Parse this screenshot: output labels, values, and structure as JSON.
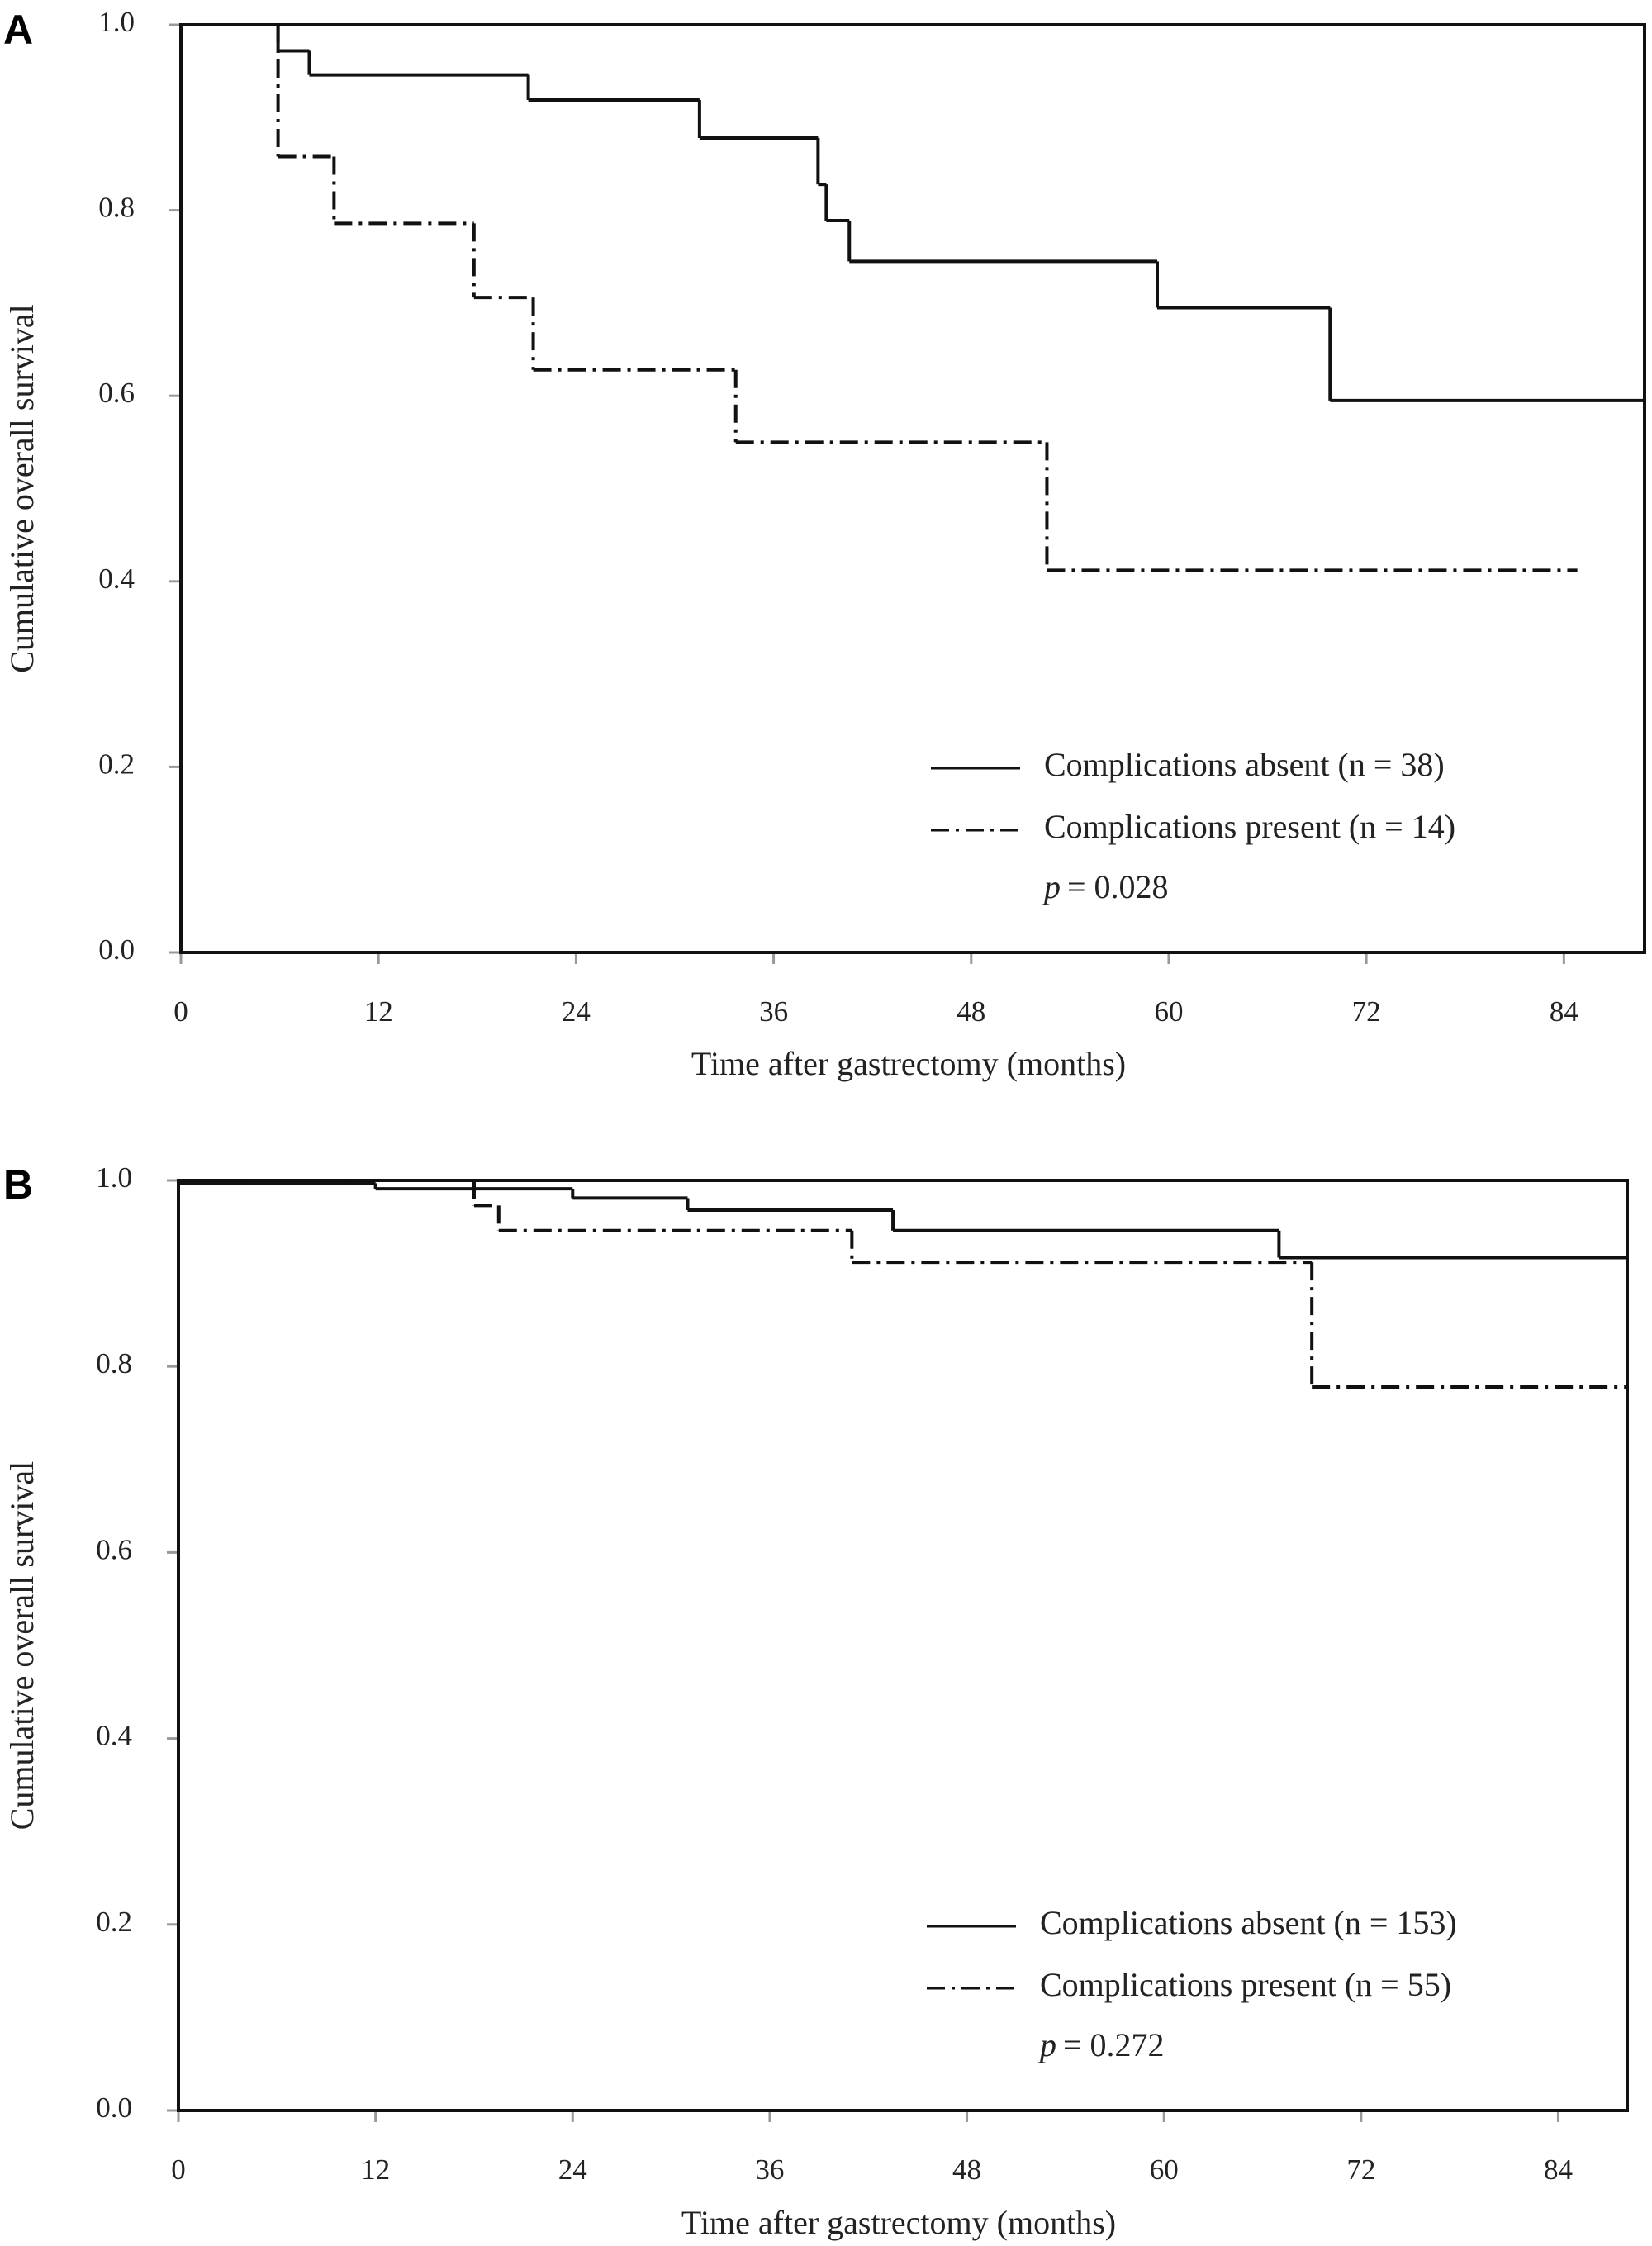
{
  "chart_data": [
    {
      "type": "step",
      "panel": "A",
      "x_label": "Time after gastrectomy (months)",
      "y_label": "Cumulative overall survival",
      "xlim": [
        0,
        88.9
      ],
      "ylim": [
        0,
        1
      ],
      "xticks": [
        0,
        12,
        24,
        36,
        48,
        60,
        72,
        84
      ],
      "yticks": [
        {
          "value": 0,
          "label": "0.0"
        },
        {
          "value": 0.2,
          "label": "0.2"
        },
        {
          "value": 0.4,
          "label": "0.4"
        },
        {
          "value": 0.6,
          "label": "0.6"
        },
        {
          "value": 0.8,
          "label": "0.8"
        },
        {
          "value": 1,
          "label": "1.0"
        }
      ],
      "series": [
        {
          "name": "Complications absent (n = 38)",
          "color": "#111111",
          "dash": "solid",
          "x": [
            0,
            5.9,
            7.8,
            21.1,
            31.5,
            38.7,
            39.2,
            40.6,
            59.3,
            69.8,
            88.9
          ],
          "values": [
            1,
            0.972,
            0.946,
            0.919,
            0.878,
            0.828,
            0.789,
            0.745,
            0.695,
            0.595,
            0.595
          ]
        },
        {
          "name": "Complications present (n = 14)",
          "color": "#111111",
          "dash": "dashdot",
          "x": [
            0,
            5.9,
            9.3,
            17.8,
            21.4,
            33.7,
            52.6,
            84.8
          ],
          "values": [
            1,
            0.858,
            0.786,
            0.706,
            0.628,
            0.55,
            0.412,
            0.412
          ]
        }
      ],
      "p_symbol": "p",
      "p_text": "= 0.028"
    },
    {
      "type": "step",
      "panel": "B",
      "x_label": "Time after gastrectomy (months)",
      "y_label": "Cumulative overall survival",
      "xlim": [
        0,
        88.2
      ],
      "ylim": [
        0,
        1
      ],
      "xticks": [
        0,
        12,
        24,
        36,
        48,
        60,
        72,
        84
      ],
      "yticks": [
        {
          "value": 0,
          "label": "0.0"
        },
        {
          "value": 0.2,
          "label": "0.2"
        },
        {
          "value": 0.4,
          "label": "0.4"
        },
        {
          "value": 0.6,
          "label": "0.6"
        },
        {
          "value": 0.8,
          "label": "0.8"
        },
        {
          "value": 1,
          "label": "1.0"
        }
      ],
      "series": [
        {
          "name": "Complications absent (n = 153)",
          "color": "#111111",
          "dash": "solid",
          "x": [
            0,
            12,
            24,
            31,
            43.5,
            67,
            88.2
          ],
          "values": [
            0.997,
            0.991,
            0.981,
            0.968,
            0.946,
            0.917,
            0.917
          ]
        },
        {
          "name": "Complications present (n = 55)",
          "color": "#111111",
          "dash": "dashdot",
          "x": [
            0,
            18,
            19.5,
            41,
            69,
            88.2
          ],
          "values": [
            1,
            0.973,
            0.946,
            0.912,
            0.778,
            0.778
          ]
        }
      ],
      "p_symbol": "p",
      "p_text": "= 0.272"
    }
  ]
}
